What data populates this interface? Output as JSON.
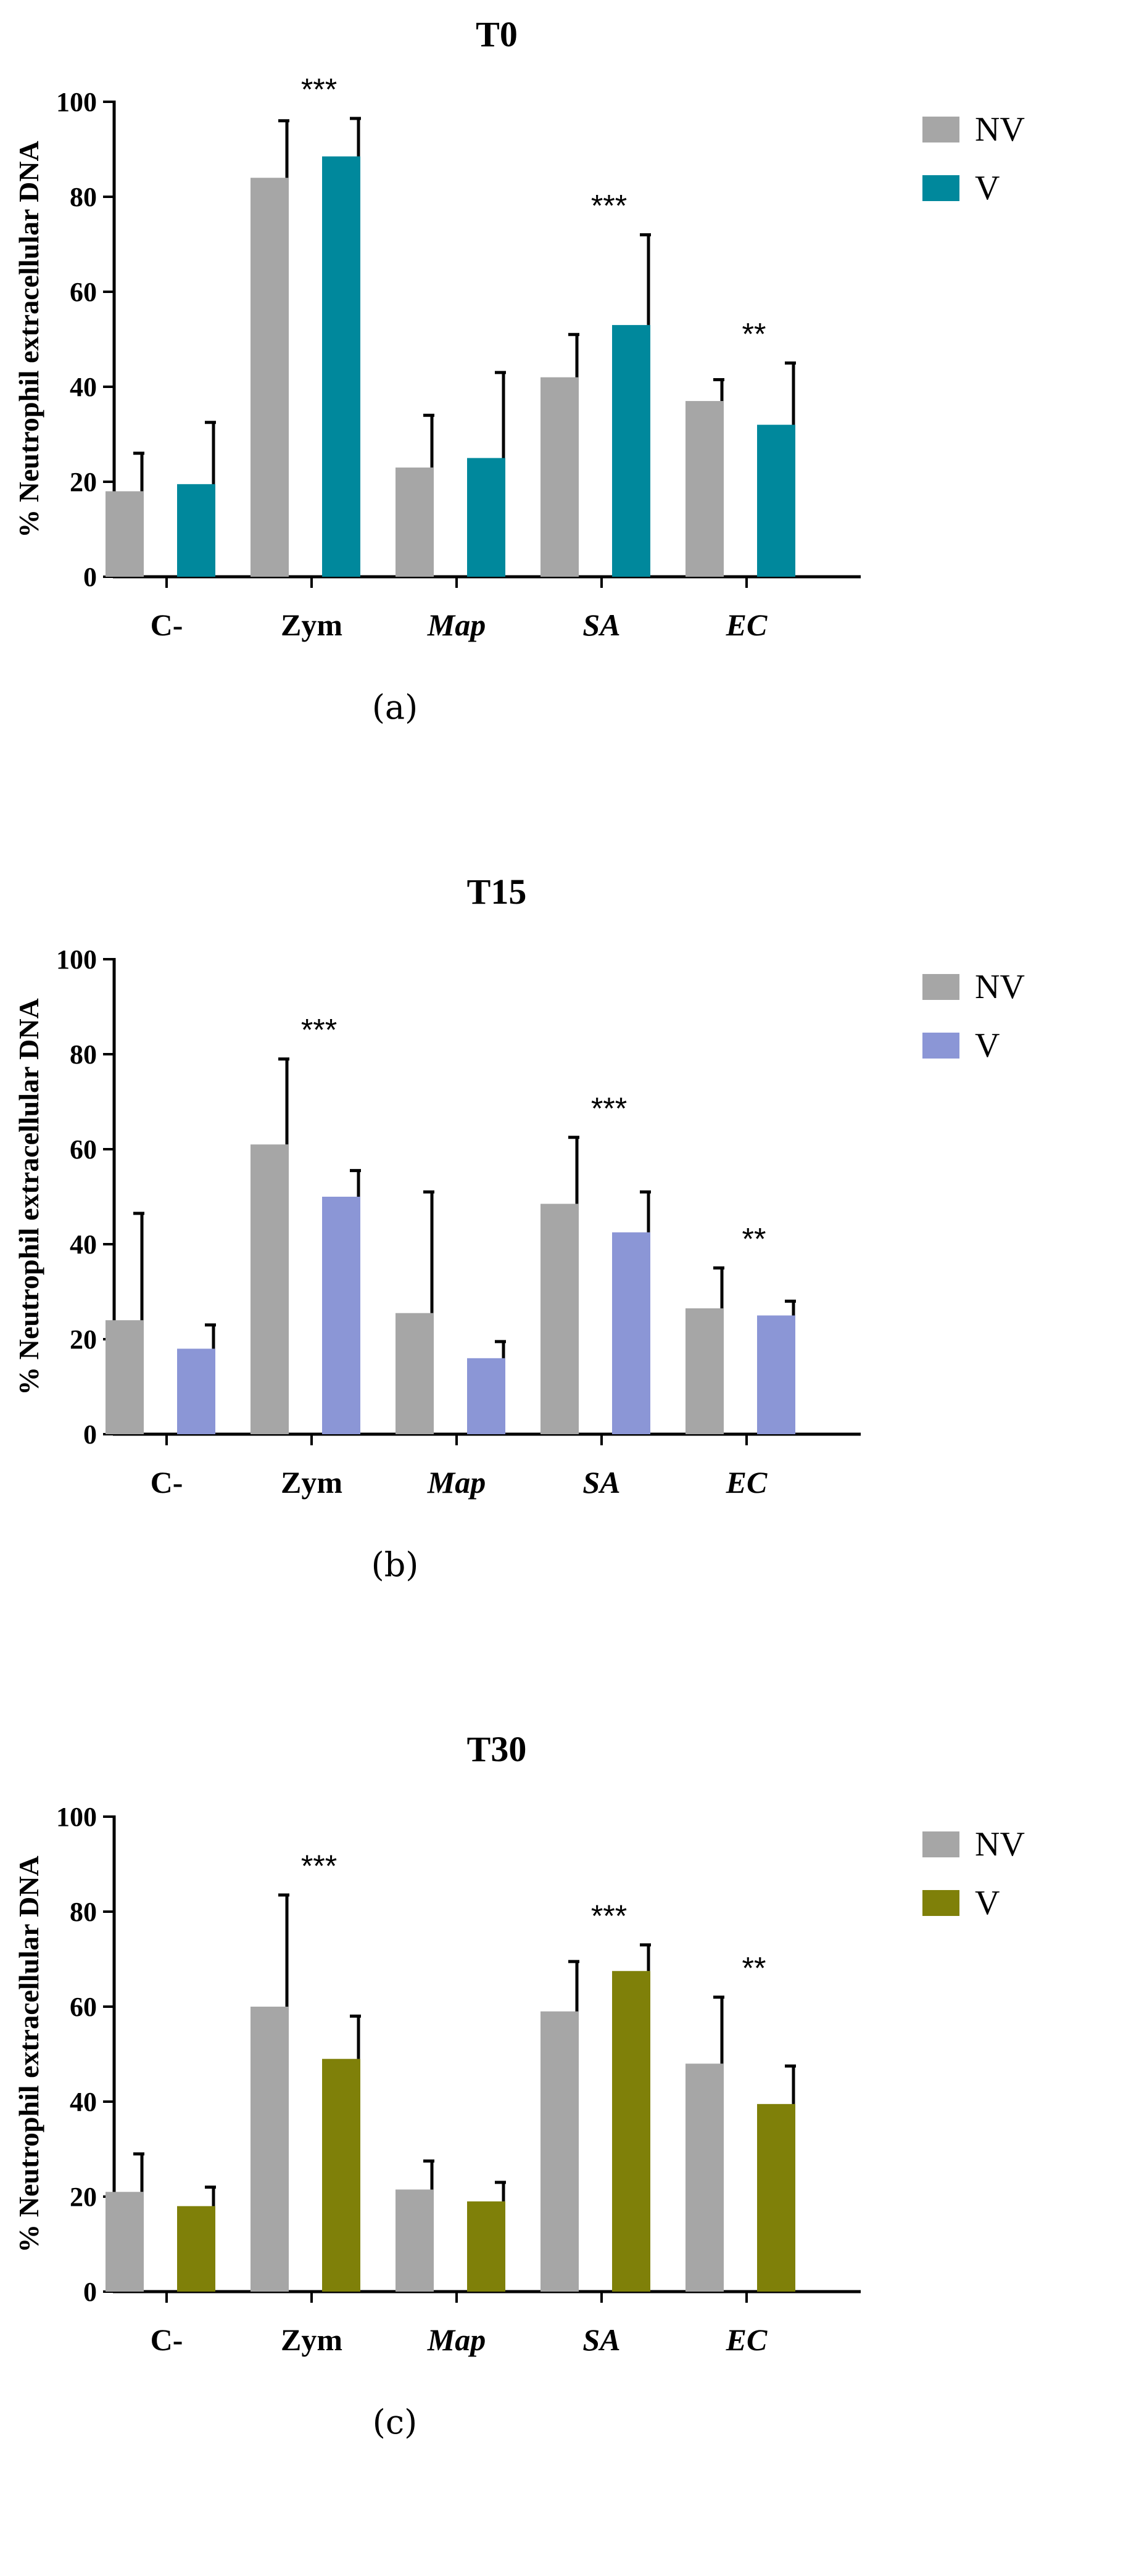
{
  "figure": {
    "colors": {
      "nv": "#a6a6a6",
      "axis": "#000000",
      "panel_a_v": "#00889c",
      "panel_b_v": "#8b96d6",
      "panel_c_v": "#7f8009"
    }
  },
  "chart_data": [
    {
      "type": "bar",
      "title": "T0",
      "panel_label": "(a)",
      "ylabel": "% Neutrophil extracellular DNA",
      "xlabel": "",
      "categories": [
        "C-",
        "Zym",
        "Map",
        "SA",
        "EC"
      ],
      "italic_categories": [
        "Map",
        "SA",
        "EC"
      ],
      "ylim": [
        0,
        100
      ],
      "yticks": [
        0,
        20,
        40,
        60,
        80,
        100
      ],
      "series": [
        {
          "name": "NV",
          "values": [
            18,
            84,
            23,
            42,
            37
          ],
          "errors": [
            8,
            12,
            11,
            9,
            4.5
          ]
        },
        {
          "name": "V",
          "values": [
            19.5,
            88.5,
            25,
            53,
            32
          ],
          "errors": [
            13,
            8,
            18,
            19,
            13
          ]
        }
      ],
      "significance": [
        "",
        "***",
        "",
        "***",
        "**"
      ],
      "legend": {
        "position": "top-right",
        "entries": [
          "NV",
          "V"
        ]
      }
    },
    {
      "type": "bar",
      "title": "T15",
      "panel_label": "(b)",
      "ylabel": "% Neutrophil extracellular DNA",
      "xlabel": "",
      "categories": [
        "C-",
        "Zym",
        "Map",
        "SA",
        "EC"
      ],
      "italic_categories": [
        "Map",
        "SA",
        "EC"
      ],
      "ylim": [
        0,
        100
      ],
      "yticks": [
        0,
        20,
        40,
        60,
        80,
        100
      ],
      "series": [
        {
          "name": "NV",
          "values": [
            24,
            61,
            25.5,
            48.5,
            26.5
          ],
          "errors": [
            22.5,
            18,
            25.5,
            14,
            8.5
          ]
        },
        {
          "name": "V",
          "values": [
            18,
            50,
            16,
            42.5,
            25
          ],
          "errors": [
            5,
            5.5,
            3.5,
            8.5,
            3
          ]
        }
      ],
      "significance": [
        "",
        "***",
        "",
        "***",
        "**"
      ],
      "legend": {
        "position": "top-right",
        "entries": [
          "NV",
          "V"
        ]
      }
    },
    {
      "type": "bar",
      "title": "T30",
      "panel_label": "(c)",
      "ylabel": "% Neutrophil extracellular DNA",
      "xlabel": "",
      "categories": [
        "C-",
        "Zym",
        "Map",
        "SA",
        "EC"
      ],
      "italic_categories": [
        "Map",
        "SA",
        "EC"
      ],
      "ylim": [
        0,
        100
      ],
      "yticks": [
        0,
        20,
        40,
        60,
        80,
        100
      ],
      "series": [
        {
          "name": "NV",
          "values": [
            21,
            60,
            21.5,
            59,
            48
          ],
          "errors": [
            8,
            23.5,
            6,
            10.5,
            14
          ]
        },
        {
          "name": "V",
          "values": [
            18,
            49,
            19,
            67.5,
            39.5
          ],
          "errors": [
            4,
            9,
            4,
            5.5,
            8
          ]
        }
      ],
      "significance": [
        "",
        "***",
        "",
        "***",
        "**"
      ],
      "legend": {
        "position": "top-right",
        "entries": [
          "NV",
          "V"
        ]
      }
    }
  ]
}
